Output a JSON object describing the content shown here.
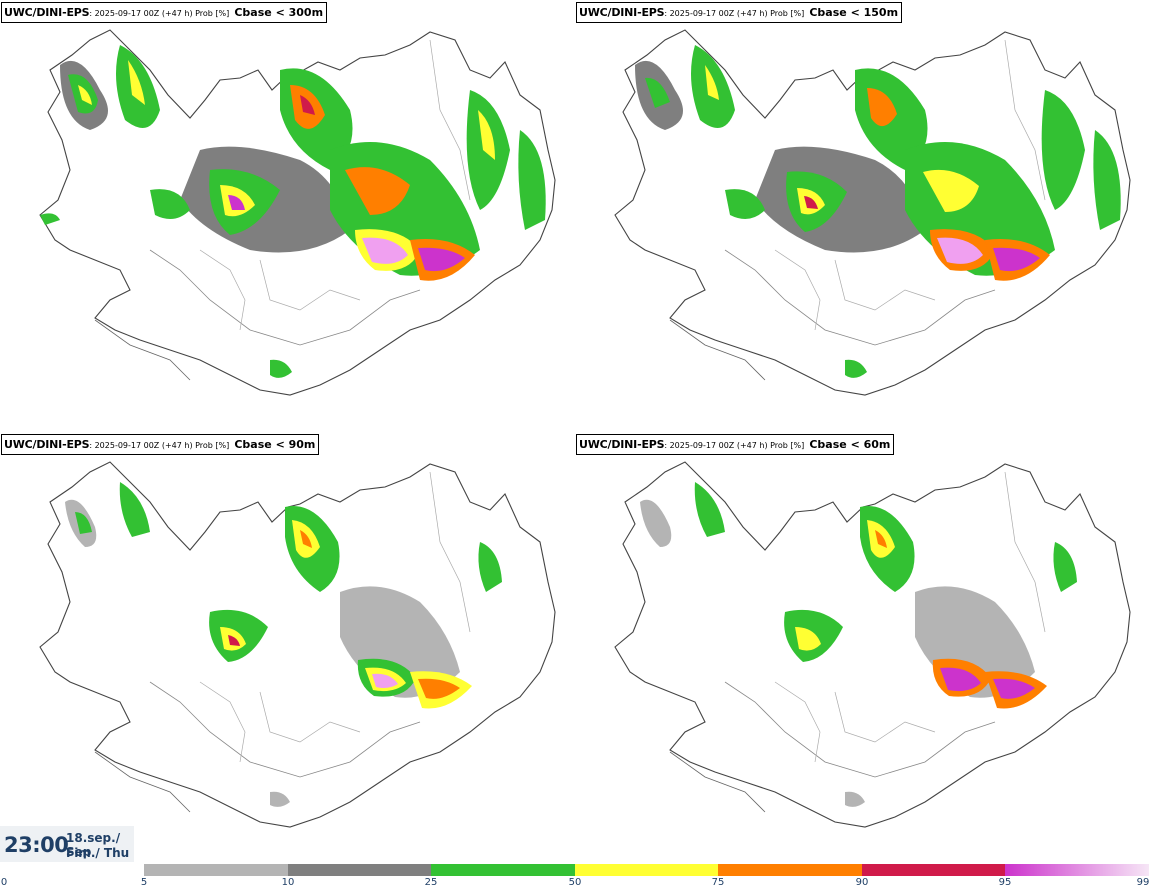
{
  "panels": [
    {
      "model": "UWC/DINI-EPS",
      "info": ": 2025-09-17 00Z (+47 h) Prob [%]",
      "param": "Cbase < 300m"
    },
    {
      "model": "UWC/DINI-EPS",
      "info": ": 2025-09-17 00Z (+47 h) Prob [%]",
      "param": "Cbase < 150m"
    },
    {
      "model": "UWC/DINI-EPS",
      "info": ": 2025-09-17 00Z (+47 h) Prob [%]",
      "param": "Cbase < 90m"
    },
    {
      "model": "UWC/DINI-EPS",
      "info": ": 2025-09-17 00Z (+47 h) Prob [%]",
      "param": "Cbase < 60m"
    }
  ],
  "time": {
    "clock": "23:00",
    "date": "18.sep./ Sep",
    "weekday": "Fim./ Thu"
  },
  "colorbar": {
    "bins": [
      {
        "from": "5",
        "to": "10",
        "color": "#b4b4b4"
      },
      {
        "from": "10",
        "to": "25",
        "color": "#7f7f7f"
      },
      {
        "from": "25",
        "to": "50",
        "color": "#33c133"
      },
      {
        "from": "50",
        "to": "75",
        "color": "#ffff33"
      },
      {
        "from": "75",
        "to": "90",
        "color": "#ff7f00"
      },
      {
        "from": "90",
        "to": "95",
        "color": "#d01a4a"
      },
      {
        "from": "95",
        "to": "99",
        "color": "#cc33cc"
      }
    ],
    "ticks": [
      "0",
      "5",
      "10",
      "25",
      "50",
      "75",
      "90",
      "95",
      "99"
    ]
  }
}
